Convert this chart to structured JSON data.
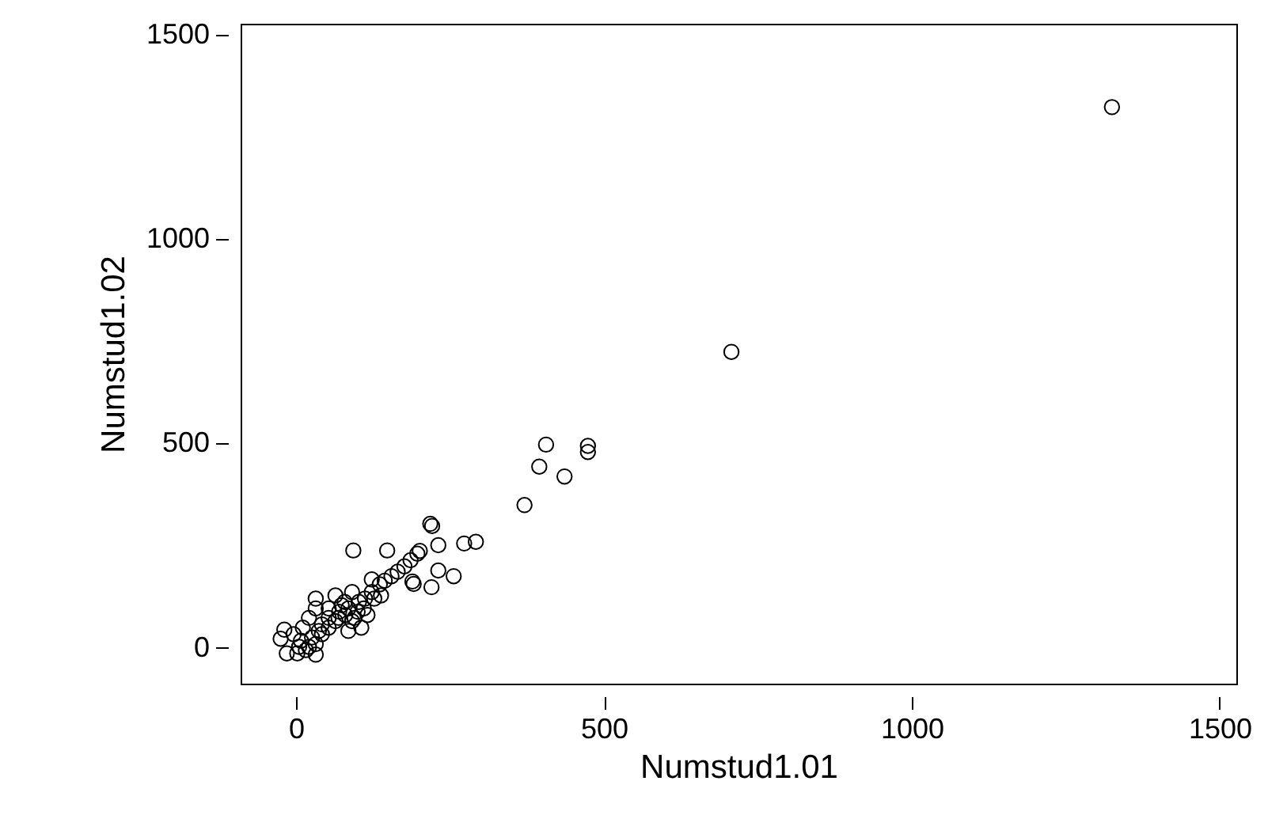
{
  "chart_data": {
    "type": "scatter",
    "xlabel": "Numstud1.01",
    "ylabel": "Numstud1.02",
    "marker": "circle",
    "color": "#000000",
    "xlim": [
      -90,
      1527
    ],
    "ylim": [
      -88,
      1527
    ],
    "xticks": [
      0,
      500,
      1000,
      1500
    ],
    "yticks": [
      0,
      500,
      1000,
      1500
    ],
    "x": [
      1325,
      707,
      406,
      474,
      474,
      395,
      436,
      371,
      218,
      221,
      231,
      273,
      292,
      93,
      148,
      256,
      220,
      231,
      191,
      189,
      201,
      197,
      186,
      176,
      165,
      155,
      144,
      136,
      123,
      123,
      112,
      102,
      91,
      74,
      64,
      80,
      91,
      85,
      106,
      53,
      42,
      32,
      32,
      21,
      11,
      -19,
      -25,
      -15,
      2,
      32,
      21,
      8,
      -4,
      42,
      53,
      64,
      70,
      85,
      100,
      110,
      127,
      138,
      32,
      16,
      37,
      53,
      69,
      95,
      116,
      79,
      5,
      26
    ],
    "values": [
      1323,
      724,
      497,
      494,
      479,
      443,
      419,
      349,
      303,
      298,
      251,
      255,
      259,
      238,
      238,
      175,
      148,
      189,
      156,
      162,
      237,
      230,
      214,
      199,
      186,
      175,
      164,
      155,
      167,
      136,
      120,
      112,
      136,
      104,
      128,
      80,
      65,
      41,
      49,
      73,
      57,
      120,
      96,
      73,
      49,
      44,
      22,
      -14,
      -14,
      -17,
      2,
      17,
      33,
      33,
      49,
      65,
      88,
      96,
      88,
      96,
      120,
      128,
      9,
      -6,
      41,
      96,
      73,
      73,
      80,
      112,
      2,
      25
    ]
  }
}
